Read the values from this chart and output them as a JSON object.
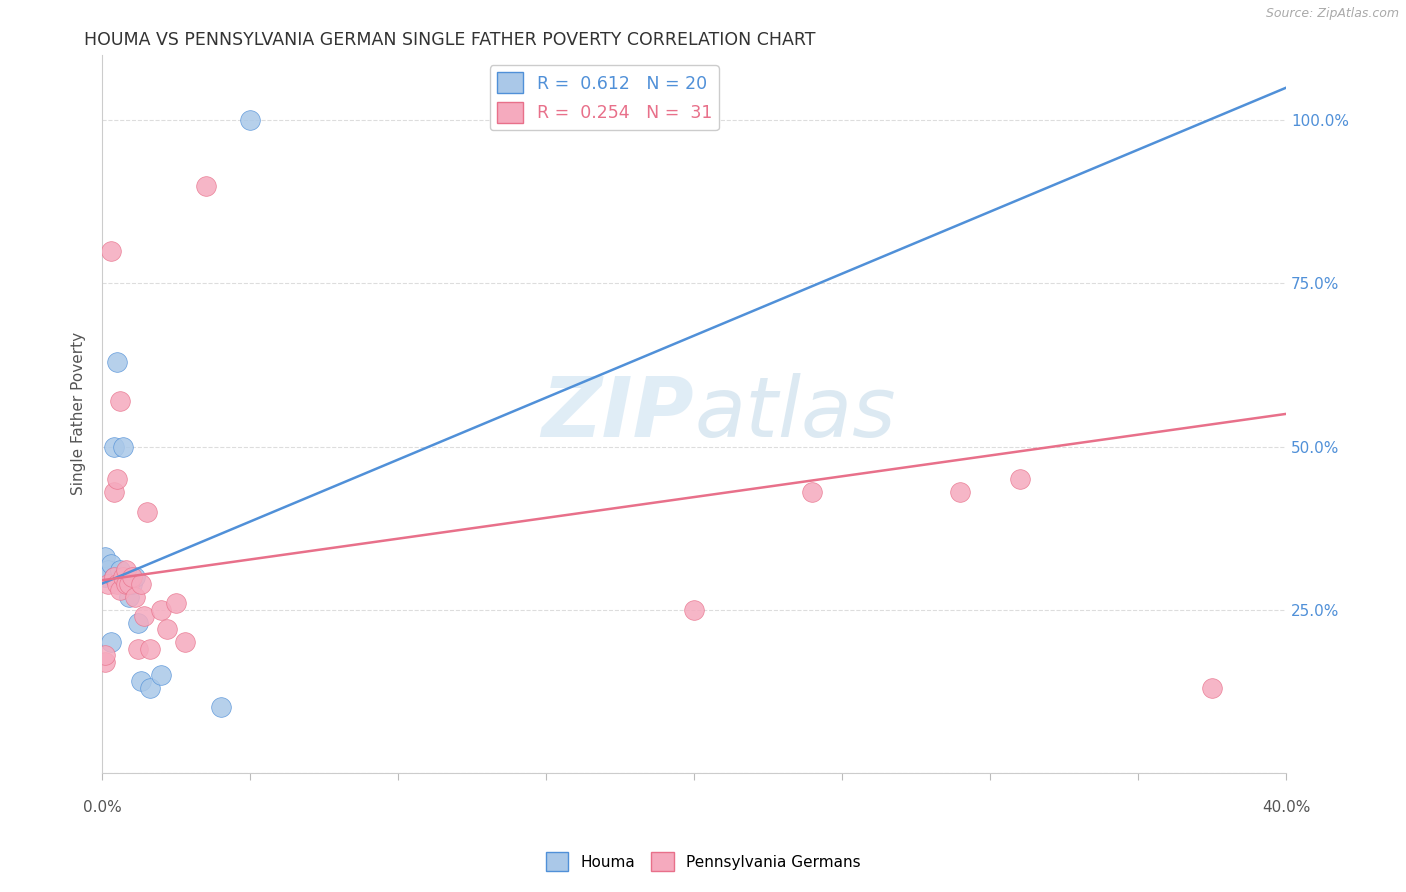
{
  "title": "HOUMA VS PENNSYLVANIA GERMAN SINGLE FATHER POVERTY CORRELATION CHART",
  "source": "Source: ZipAtlas.com",
  "ylabel": "Single Father Poverty",
  "watermark": "ZIPatlas",
  "houma_color": "#aac8e8",
  "penn_color": "#f5aabe",
  "line_blue": "#5090d8",
  "line_pink": "#e8708a",
  "houma_x": [
    0.001,
    0.001,
    0.002,
    0.003,
    0.003,
    0.004,
    0.004,
    0.005,
    0.006,
    0.007,
    0.008,
    0.009,
    0.01,
    0.011,
    0.012,
    0.013,
    0.016,
    0.02,
    0.04,
    0.05
  ],
  "houma_y": [
    0.33,
    0.3,
    0.31,
    0.32,
    0.2,
    0.5,
    0.3,
    0.63,
    0.31,
    0.5,
    0.29,
    0.27,
    0.29,
    0.3,
    0.23,
    0.14,
    0.13,
    0.15,
    0.1,
    1.0
  ],
  "penn_x": [
    0.001,
    0.001,
    0.002,
    0.003,
    0.004,
    0.004,
    0.005,
    0.005,
    0.006,
    0.006,
    0.007,
    0.008,
    0.008,
    0.009,
    0.01,
    0.011,
    0.012,
    0.013,
    0.014,
    0.015,
    0.016,
    0.02,
    0.022,
    0.025,
    0.028,
    0.035,
    0.2,
    0.24,
    0.29,
    0.31,
    0.375
  ],
  "penn_y": [
    0.17,
    0.18,
    0.29,
    0.8,
    0.3,
    0.43,
    0.29,
    0.45,
    0.28,
    0.57,
    0.3,
    0.29,
    0.31,
    0.29,
    0.3,
    0.27,
    0.19,
    0.29,
    0.24,
    0.4,
    0.19,
    0.25,
    0.22,
    0.26,
    0.2,
    0.9,
    0.25,
    0.43,
    0.43,
    0.45,
    0.13
  ],
  "blue_line_x": [
    0.0,
    0.4
  ],
  "blue_line_y": [
    0.29,
    1.05
  ],
  "pink_line_x": [
    0.0,
    0.4
  ],
  "pink_line_y": [
    0.295,
    0.55
  ],
  "xlim": [
    0.0,
    0.4
  ],
  "ylim": [
    0.0,
    1.1
  ],
  "background": "#ffffff"
}
